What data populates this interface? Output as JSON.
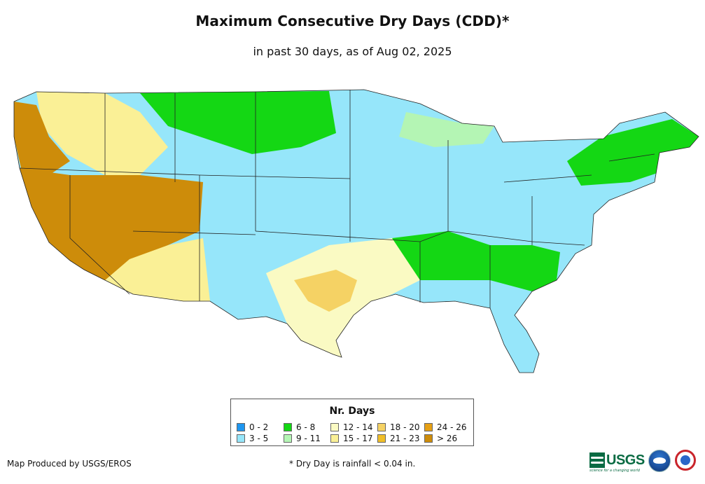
{
  "header": {
    "title": "Maximum Consecutive Dry Days (CDD)*",
    "subtitle": "in past 30 days, as of Aug 02, 2025"
  },
  "legend": {
    "title": "Nr. Days",
    "items": [
      {
        "label": "0 - 2",
        "color": "#1e96f0"
      },
      {
        "label": "3 - 5",
        "color": "#96e6fa"
      },
      {
        "label": "6 - 8",
        "color": "#14d714"
      },
      {
        "label": "9 - 11",
        "color": "#b4f5b4"
      },
      {
        "label": "12 - 14",
        "color": "#fafac3"
      },
      {
        "label": "15 - 17",
        "color": "#faf096"
      },
      {
        "label": "18 - 20",
        "color": "#f5d264"
      },
      {
        "label": "21 - 23",
        "color": "#f0be28"
      },
      {
        "label": "24 - 26",
        "color": "#e6a014"
      },
      {
        "label": "> 26",
        "color": "#cd8c0a"
      }
    ]
  },
  "regions": [
    {
      "name": "pacific-northwest",
      "category": "> 26"
    },
    {
      "name": "northern-rockies",
      "category": "15 - 17"
    },
    {
      "name": "california-great-basin",
      "category": "> 26"
    },
    {
      "name": "desert-southwest",
      "category": "15 - 17"
    },
    {
      "name": "northern-plains",
      "category": "3 - 5"
    },
    {
      "name": "southern-plains-texas",
      "category": "12 - 14"
    },
    {
      "name": "midwest-east",
      "category": "3 - 5"
    },
    {
      "name": "new-england-north",
      "category": "6 - 8"
    }
  ],
  "footer": {
    "credit": "Map Produced by USGS/EROS",
    "footnote": "* Dry Day is rainfall < 0.04 in.",
    "usgs_logo_text": "USGS",
    "usgs_tagline": "science for a changing world"
  }
}
